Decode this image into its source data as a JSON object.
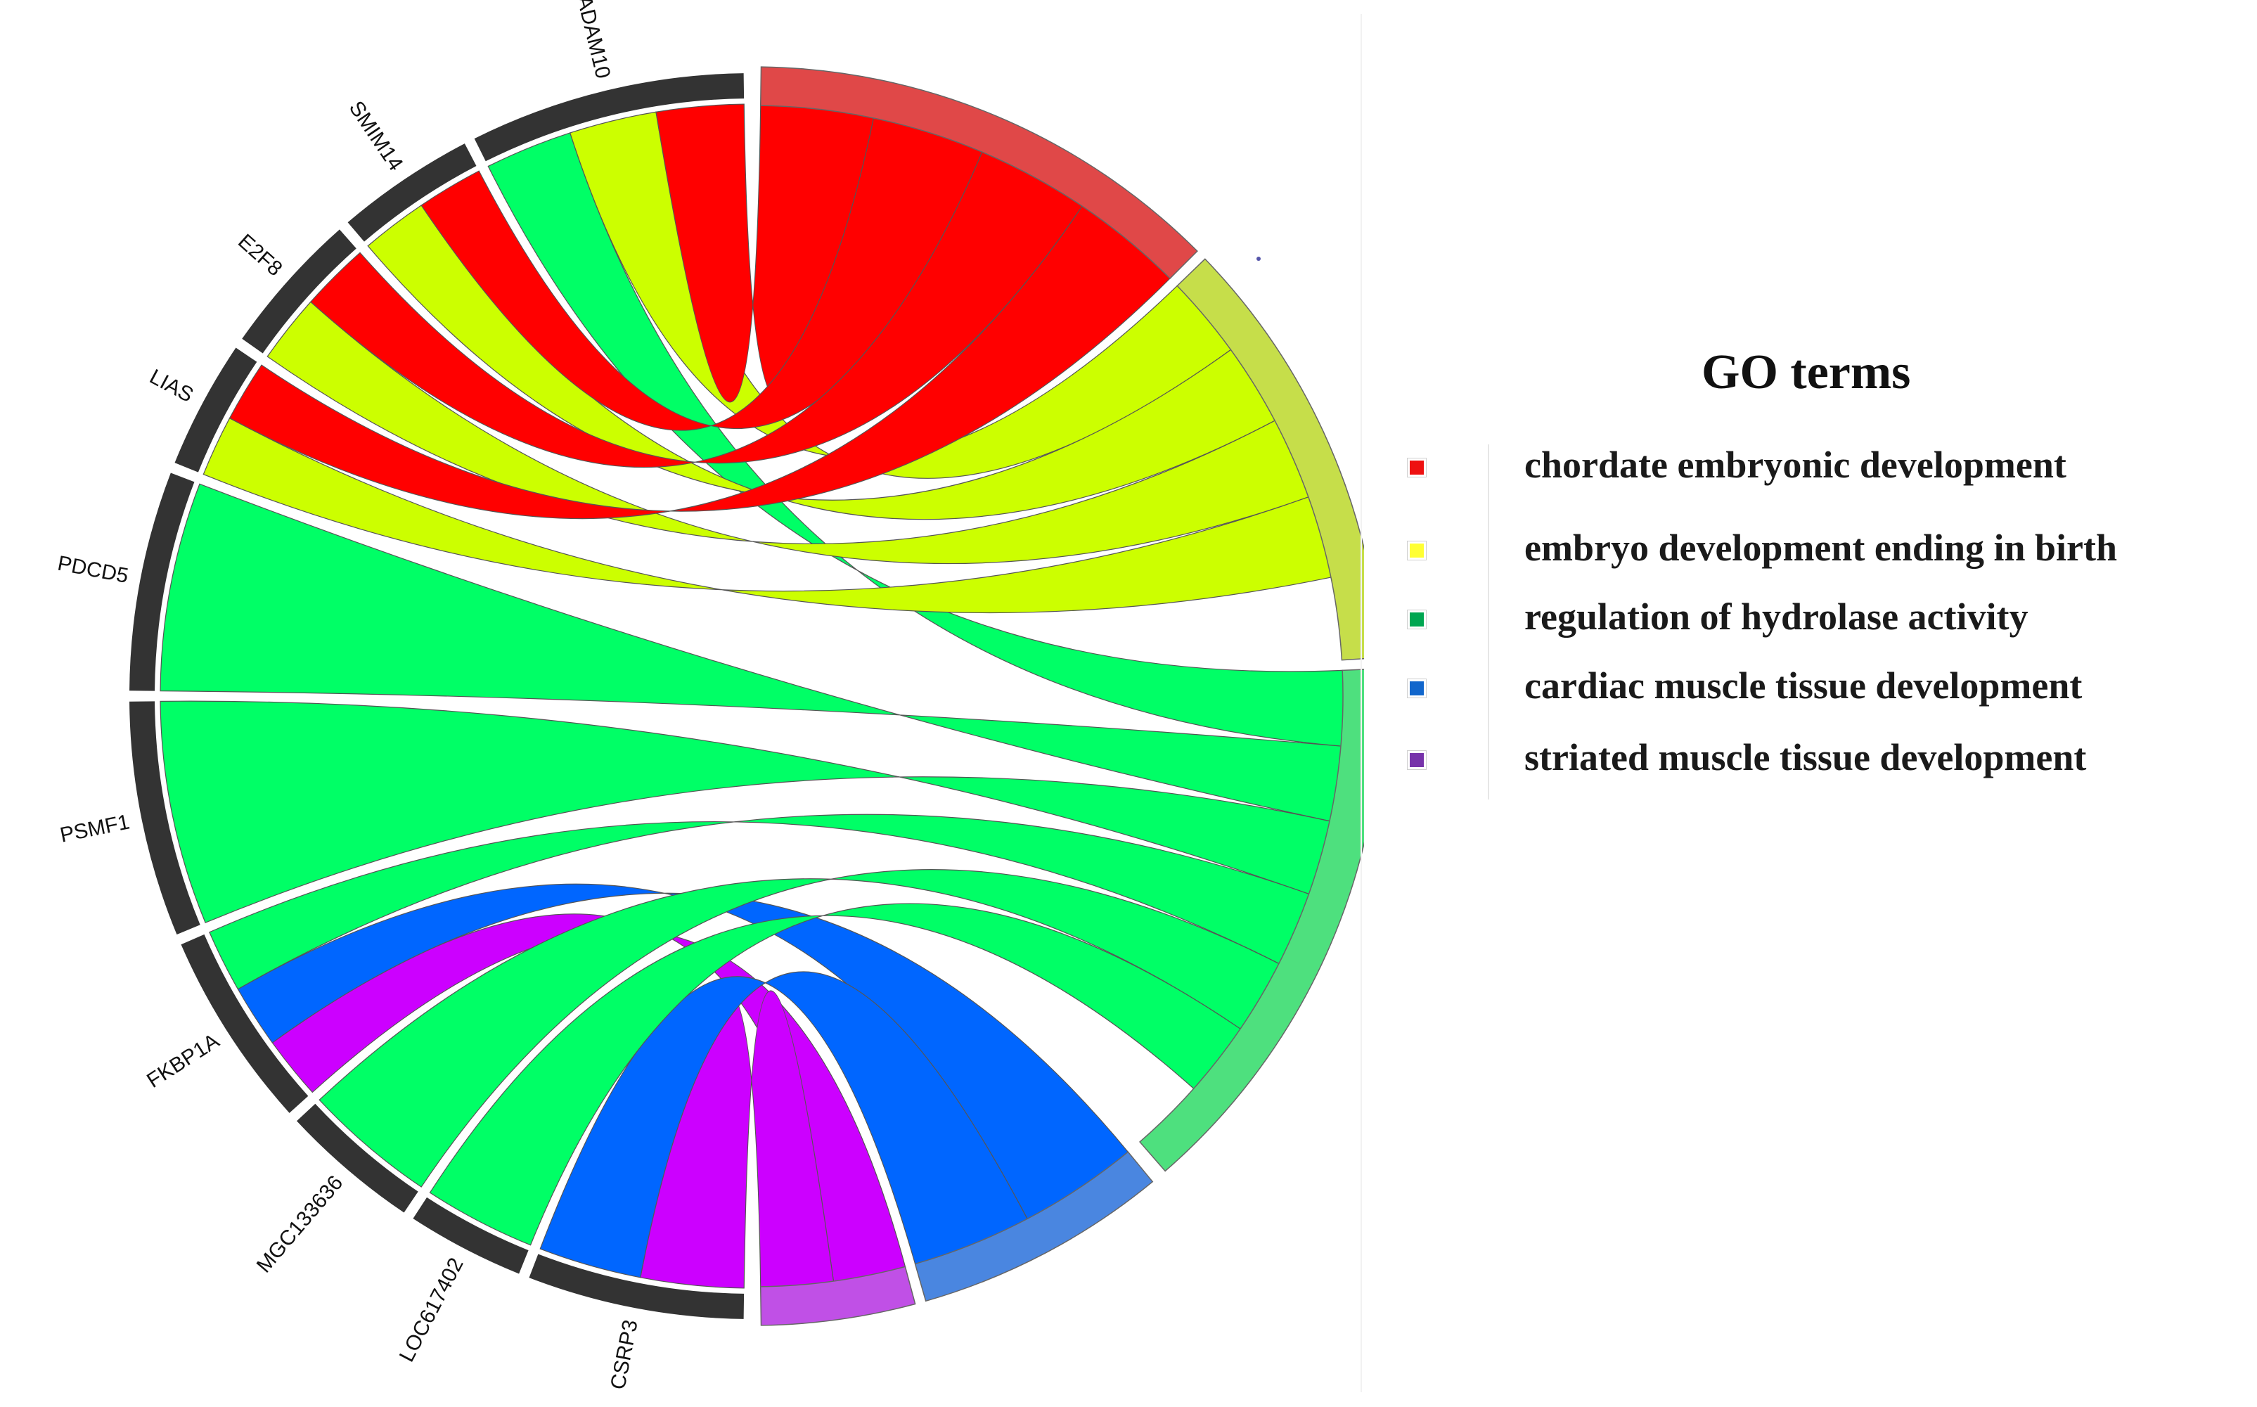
{
  "genes": [
    "ADAM10",
    "SMIM14",
    "E2F8",
    "LIAS",
    "PDCD5",
    "PSMF1",
    "FKBP1A",
    "MGC133636",
    "LOC617402",
    "CSRP3"
  ],
  "go_terms": [
    {
      "name": "chordate embryonic development",
      "color": "#ff0000",
      "swatch": "#ee1111"
    },
    {
      "name": "embryo development ending in birth",
      "color": "#ccff00",
      "swatch": "#ffff33"
    },
    {
      "name": "regulation of hydrolase activity",
      "color": "#00ff66",
      "swatch": "#00a651"
    },
    {
      "name": "cardiac muscle tissue development",
      "color": "#0066ff",
      "swatch": "#1166cc"
    },
    {
      "name": "striated muscle tissue development",
      "color": "#cc00ff",
      "swatch": "#7733aa"
    }
  ],
  "legend": {
    "title": "GO terms"
  },
  "links": [
    {
      "gene": "ADAM10",
      "terms": [
        0,
        1,
        2
      ]
    },
    {
      "gene": "SMIM14",
      "terms": [
        0,
        1
      ]
    },
    {
      "gene": "E2F8",
      "terms": [
        0,
        1
      ]
    },
    {
      "gene": "LIAS",
      "terms": [
        0,
        1
      ]
    },
    {
      "gene": "PDCD5",
      "terms": [
        2
      ]
    },
    {
      "gene": "PSMF1",
      "terms": [
        2
      ]
    },
    {
      "gene": "FKBP1A",
      "terms": [
        2,
        3,
        4
      ]
    },
    {
      "gene": "MGC133636",
      "terms": [
        2
      ]
    },
    {
      "gene": "LOC617402",
      "terms": [
        2
      ]
    },
    {
      "gene": "CSRP3",
      "terms": [
        3,
        4
      ]
    }
  ]
}
